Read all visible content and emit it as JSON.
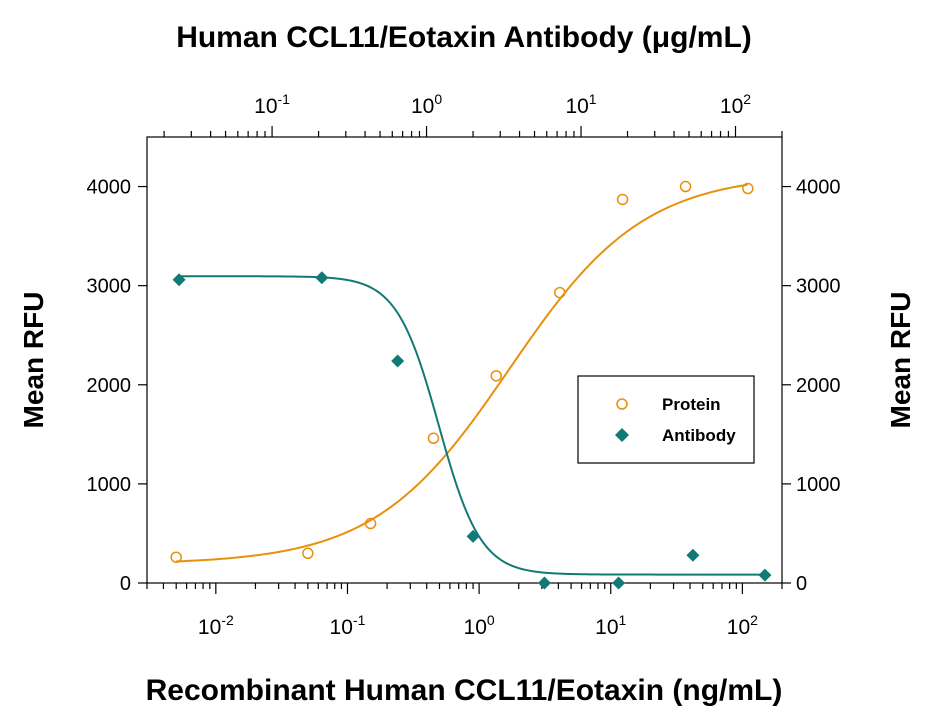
{
  "chart_data": {
    "type": "scatter",
    "top_axis_title": "Human CCL11/Eotaxin Antibody (μg/mL)",
    "bottom_axis_title": "Recombinant Human CCL11/Eotaxin (ng/mL)",
    "left_axis_title": "Mean RFU",
    "right_axis_title": "Mean RFU",
    "x_scale": "log",
    "bottom_xlim": [
      0.003,
      200
    ],
    "top_xlim": [
      0.0155,
      200
    ],
    "ylim": [
      0,
      4500
    ],
    "bottom_ticks": [
      {
        "value": 0.01,
        "base": "10",
        "exp": "-2"
      },
      {
        "value": 0.1,
        "base": "10",
        "exp": "-1"
      },
      {
        "value": 1,
        "base": "10",
        "exp": "0"
      },
      {
        "value": 10,
        "base": "10",
        "exp": "1"
      },
      {
        "value": 100,
        "base": "10",
        "exp": "2"
      }
    ],
    "top_ticks": [
      {
        "value": 0.1,
        "base": "10",
        "exp": "-1"
      },
      {
        "value": 1,
        "base": "10",
        "exp": "0"
      },
      {
        "value": 10,
        "base": "10",
        "exp": "1"
      },
      {
        "value": 100,
        "base": "10",
        "exp": "2"
      }
    ],
    "y_ticks": [
      "0",
      "1000",
      "2000",
      "3000",
      "4000"
    ],
    "legend_position": "right-middle",
    "series": [
      {
        "name": "Protein",
        "axis": "bottom",
        "color": "#E8900C",
        "marker": "open-circle",
        "x": [
          0.005,
          0.05,
          0.15,
          0.45,
          1.35,
          4.1,
          12.3,
          37,
          110
        ],
        "y": [
          260,
          300,
          600,
          1460,
          2090,
          2930,
          3870,
          4000,
          3980
        ]
      },
      {
        "name": "Antibody",
        "axis": "top",
        "color": "#127A74",
        "marker": "filled-diamond",
        "x": [
          0.025,
          0.21,
          0.65,
          2.0,
          5.8,
          17.5,
          53,
          155
        ],
        "y": [
          3060,
          3080,
          2240,
          470,
          0,
          0,
          280,
          80
        ]
      }
    ],
    "fits": [
      {
        "series": "Protein",
        "bottom": 190,
        "top": 4130,
        "ec50": 1.7,
        "hill": 0.85
      },
      {
        "series": "Antibody",
        "top": 3095,
        "bottom": 85,
        "ic50": 1.2,
        "hill": 3.2
      }
    ]
  }
}
